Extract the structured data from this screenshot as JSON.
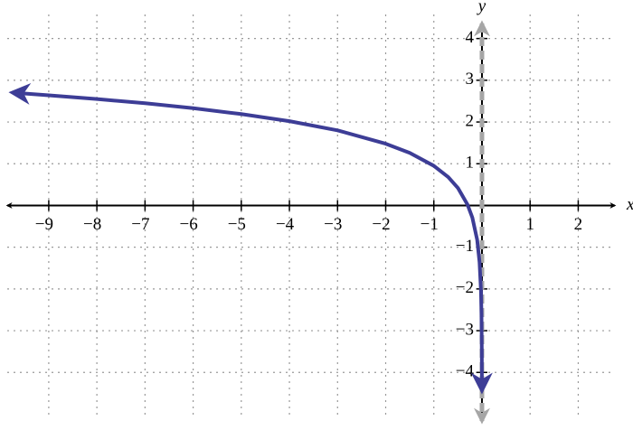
{
  "chart_data": {
    "type": "line",
    "x_label": "x",
    "y_label": "y",
    "xlim": [
      -9.9,
      2.95
    ],
    "ylim": [
      -5.25,
      4.75
    ],
    "xticks": [
      {
        "value": -9,
        "label": "−9"
      },
      {
        "value": -8,
        "label": "−8"
      },
      {
        "value": -7,
        "label": "−7"
      },
      {
        "value": -6,
        "label": "−6"
      },
      {
        "value": -5,
        "label": "−5"
      },
      {
        "value": -4,
        "label": "−4"
      },
      {
        "value": -3,
        "label": "−3"
      },
      {
        "value": -2,
        "label": "−2"
      },
      {
        "value": -1,
        "label": "−1"
      },
      1,
      2
    ],
    "yticks": [
      {
        "value": -4,
        "label": "−4"
      },
      {
        "value": -3,
        "label": "−3"
      },
      {
        "value": -2,
        "label": "−2"
      },
      {
        "value": -1,
        "label": "−1"
      },
      1,
      2,
      3,
      4
    ],
    "grid": true,
    "asymptote_x": 0,
    "x": [
      -9.7,
      -9,
      -8,
      -7,
      -6,
      -5,
      -4,
      -3,
      -2,
      -1.5,
      -1,
      -0.7,
      -0.5,
      -0.3,
      -0.2,
      -0.1,
      -0.05,
      -0.02,
      -0.01,
      -0.003,
      -0.001
    ],
    "series": [
      {
        "color": "#3d3d96",
        "values": [
          2.7,
          2.64,
          2.55,
          2.45,
          2.33,
          2.19,
          2.02,
          1.8,
          1.48,
          1.26,
          0.95,
          0.68,
          0.42,
          0.02,
          -0.29,
          -0.82,
          -1.36,
          -2.06,
          -2.6,
          -3.52,
          -4.37
        ]
      }
    ]
  }
}
